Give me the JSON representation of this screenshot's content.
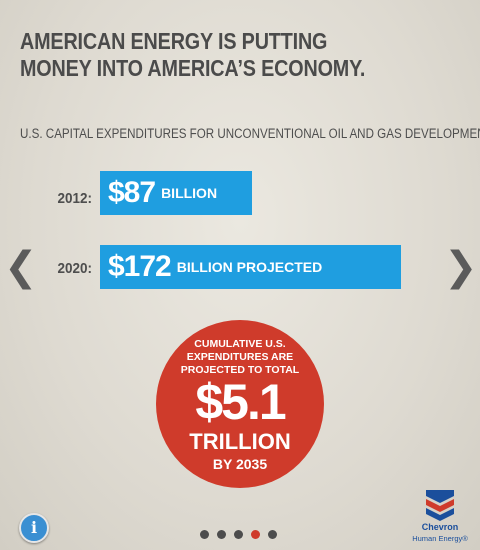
{
  "headline": {
    "line1": "AMERICAN ENERGY IS PUTTING",
    "line2": "MONEY INTO AMERICA’S ECONOMY."
  },
  "subhead": "U.S. CAPITAL EXPENDITURES FOR UNCONVENTIONAL OIL AND GAS DEVELOPMENT:",
  "chart_data": {
    "type": "bar",
    "orientation": "horizontal",
    "title": "U.S. CAPITAL EXPENDITURES FOR UNCONVENTIONAL OIL AND GAS DEVELOPMENT:",
    "categories": [
      "2012:",
      "2020:"
    ],
    "values": [
      87,
      172
    ],
    "value_labels": [
      "$87",
      "$172"
    ],
    "unit_labels": [
      "BILLION",
      "BILLION PROJECTED"
    ],
    "bar_color": "#1f9ee0"
  },
  "callout": {
    "line1": "CUMULATIVE U.S.",
    "line2": "EXPENDITURES ARE",
    "line3": "PROJECTED TO TOTAL",
    "amount": "$5.1",
    "unit": "TRILLION",
    "by": "BY 2035",
    "color": "#cf3b2b"
  },
  "nav": {
    "prev_icon": "chevron-left-icon",
    "next_icon": "chevron-right-icon",
    "prev_glyph": "❮",
    "next_glyph": "❯",
    "info_glyph": "i",
    "pages": 5,
    "active_page": 4
  },
  "logo": {
    "brand": "Chevron",
    "tagline": "Human Energy®"
  }
}
